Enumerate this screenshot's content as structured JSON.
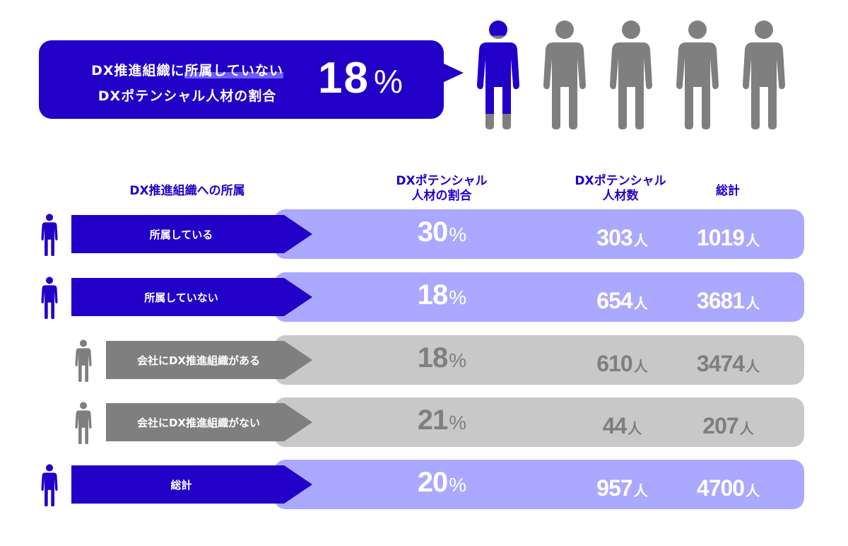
{
  "callout": {
    "line1_a": "DX推進組織に",
    "line1_b": "所属していない",
    "line2": "DXポテンシャル人材の割合",
    "value": "18",
    "unit": "%"
  },
  "colors": {
    "primary": "#2200c8",
    "primary_light": "#aba8ff",
    "gray": "#7f7f7f",
    "gray_light": "#c8c8c8"
  },
  "people_fill_fraction": 0.82,
  "chart_data": {
    "type": "table",
    "columns": [
      "DX推進組織への所属",
      "DXポテンシャル人材の割合",
      "DXポテンシャル人材数",
      "総計"
    ],
    "column_lines": {
      "c2a": "DXポテンシャル",
      "c2b": "人材の割合",
      "c3a": "DXポテンシャル",
      "c3b": "人材数"
    },
    "unit_pct": "%",
    "unit_person": "人",
    "rows": [
      {
        "label": "所属している",
        "pct": "30",
        "count": "303",
        "total": "1019",
        "style": "blue"
      },
      {
        "label": "所属していない",
        "pct": "18",
        "count": "654",
        "total": "3681",
        "style": "blue"
      },
      {
        "label": "会社にDX推進組織がある",
        "pct": "18",
        "count": "610",
        "total": "3474",
        "style": "gray"
      },
      {
        "label": "会社にDX推進組織がない",
        "pct": "21",
        "count": "44",
        "total": "207",
        "style": "gray"
      },
      {
        "label": "総計",
        "pct": "20",
        "count": "957",
        "total": "4700",
        "style": "blue"
      }
    ]
  }
}
